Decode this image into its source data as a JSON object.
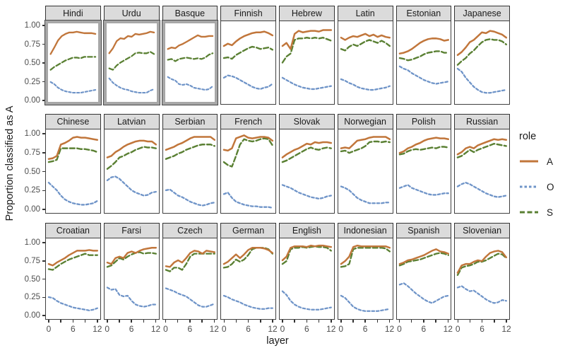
{
  "figure": {
    "ylabel": "Proportion classified as A",
    "xlabel": "layer",
    "y_tick_labels": [
      "1.00",
      "0.75",
      "0.50",
      "0.25",
      "0.00"
    ],
    "y_tick_values": [
      1.0,
      0.75,
      0.5,
      0.25,
      0.0
    ],
    "x_tick_labels": [
      "0",
      "6",
      "12"
    ],
    "x_labeled_values": [
      0,
      6,
      12
    ],
    "x_minor_tick_values": [
      0,
      3,
      6,
      9,
      12
    ]
  },
  "legend": {
    "title": "role",
    "entries": [
      {
        "label": "A",
        "color": "#c1763b",
        "dash": ""
      },
      {
        "label": "O",
        "color": "#6f94c8",
        "dash": "3.5 3"
      },
      {
        "label": "S",
        "color": "#5a8033",
        "dash": "7 3.5"
      }
    ]
  },
  "colors": {
    "series_A": "#c1763b",
    "series_O": "#6f94c8",
    "series_S": "#5a8033",
    "strip_bg": "#dbdbdb",
    "panel_border": "#404040",
    "highlight_frame": "#a7a7a7",
    "tick_text": "#4d4d4d"
  },
  "chart_data": {
    "type": "line",
    "xlabel": "layer",
    "ylabel": "Proportion classified as A",
    "x": [
      0,
      1,
      2,
      3,
      4,
      5,
      6,
      7,
      8,
      9,
      10,
      11,
      12
    ],
    "xlim": [
      0,
      12
    ],
    "ylim": [
      0,
      1
    ],
    "legend_position": "right",
    "series_names": [
      "A",
      "O",
      "S"
    ],
    "highlighted_facets": [
      "Hindi",
      "Urdu",
      "Basque"
    ],
    "facets": [
      {
        "title": "Hindi",
        "highlighted": true,
        "A": [
          0.62,
          0.71,
          0.81,
          0.87,
          0.9,
          0.92,
          0.92,
          0.93,
          0.92,
          0.91,
          0.91,
          0.91,
          0.9
        ],
        "O": [
          0.23,
          0.2,
          0.15,
          0.12,
          0.1,
          0.09,
          0.08,
          0.08,
          0.08,
          0.09,
          0.1,
          0.11,
          0.12
        ],
        "S": [
          0.4,
          0.44,
          0.47,
          0.5,
          0.53,
          0.55,
          0.57,
          0.57,
          0.56,
          0.58,
          0.58,
          0.58,
          0.58
        ]
      },
      {
        "title": "Urdu",
        "highlighted": true,
        "A": [
          0.63,
          0.7,
          0.8,
          0.84,
          0.83,
          0.87,
          0.86,
          0.9,
          0.89,
          0.9,
          0.91,
          0.93,
          0.92
        ],
        "O": [
          0.28,
          0.22,
          0.18,
          0.15,
          0.13,
          0.12,
          0.1,
          0.09,
          0.08,
          0.08,
          0.08,
          0.11,
          0.13
        ],
        "S": [
          0.42,
          0.4,
          0.46,
          0.5,
          0.53,
          0.56,
          0.59,
          0.63,
          0.64,
          0.63,
          0.63,
          0.65,
          0.62
        ]
      },
      {
        "title": "Basque",
        "highlighted": true,
        "A": [
          0.69,
          0.71,
          0.7,
          0.74,
          0.76,
          0.79,
          0.82,
          0.85,
          0.88,
          0.86,
          0.86,
          0.87,
          0.87
        ],
        "O": [
          0.3,
          0.27,
          0.25,
          0.2,
          0.19,
          0.2,
          0.18,
          0.15,
          0.14,
          0.13,
          0.12,
          0.13,
          0.17
        ],
        "S": [
          0.54,
          0.55,
          0.52,
          0.55,
          0.56,
          0.57,
          0.56,
          0.55,
          0.56,
          0.55,
          0.57,
          0.61,
          0.63
        ]
      },
      {
        "title": "Finnish",
        "highlighted": false,
        "A": [
          0.72,
          0.75,
          0.73,
          0.78,
          0.82,
          0.85,
          0.87,
          0.89,
          0.9,
          0.9,
          0.91,
          0.89,
          0.86
        ],
        "O": [
          0.3,
          0.33,
          0.32,
          0.3,
          0.27,
          0.24,
          0.21,
          0.18,
          0.16,
          0.15,
          0.17,
          0.18,
          0.22
        ],
        "S": [
          0.56,
          0.57,
          0.55,
          0.6,
          0.63,
          0.66,
          0.69,
          0.71,
          0.7,
          0.68,
          0.69,
          0.7,
          0.67
        ]
      },
      {
        "title": "Hebrew",
        "highlighted": false,
        "A": [
          0.72,
          0.76,
          0.68,
          0.88,
          0.92,
          0.9,
          0.91,
          0.92,
          0.92,
          0.91,
          0.93,
          0.93,
          0.93
        ],
        "O": [
          0.3,
          0.27,
          0.24,
          0.21,
          0.19,
          0.17,
          0.16,
          0.15,
          0.15,
          0.16,
          0.17,
          0.18,
          0.19
        ],
        "S": [
          0.5,
          0.58,
          0.62,
          0.8,
          0.82,
          0.82,
          0.83,
          0.82,
          0.83,
          0.82,
          0.83,
          0.81,
          0.79
        ]
      },
      {
        "title": "Latin",
        "highlighted": false,
        "A": [
          0.83,
          0.8,
          0.83,
          0.85,
          0.84,
          0.86,
          0.88,
          0.85,
          0.87,
          0.84,
          0.86,
          0.84,
          0.83
        ],
        "O": [
          0.28,
          0.26,
          0.23,
          0.21,
          0.18,
          0.16,
          0.15,
          0.14,
          0.14,
          0.15,
          0.16,
          0.17,
          0.19
        ],
        "S": [
          0.68,
          0.66,
          0.71,
          0.74,
          0.72,
          0.75,
          0.78,
          0.8,
          0.78,
          0.76,
          0.79,
          0.76,
          0.72
        ]
      },
      {
        "title": "Estonian",
        "highlighted": false,
        "A": [
          0.62,
          0.63,
          0.65,
          0.68,
          0.72,
          0.76,
          0.79,
          0.81,
          0.82,
          0.82,
          0.81,
          0.79,
          0.8
        ],
        "O": [
          0.45,
          0.42,
          0.4,
          0.36,
          0.33,
          0.3,
          0.27,
          0.25,
          0.23,
          0.22,
          0.23,
          0.24,
          0.25
        ],
        "S": [
          0.56,
          0.55,
          0.53,
          0.54,
          0.56,
          0.58,
          0.61,
          0.63,
          0.64,
          0.65,
          0.65,
          0.63,
          0.63
        ]
      },
      {
        "title": "Japanese",
        "highlighted": false,
        "A": [
          0.6,
          0.64,
          0.7,
          0.77,
          0.8,
          0.85,
          0.9,
          0.89,
          0.92,
          0.91,
          0.89,
          0.87,
          0.83
        ],
        "O": [
          0.42,
          0.38,
          0.3,
          0.24,
          0.18,
          0.14,
          0.11,
          0.1,
          0.1,
          0.11,
          0.12,
          0.13,
          0.14
        ],
        "S": [
          0.47,
          0.52,
          0.56,
          0.62,
          0.66,
          0.72,
          0.77,
          0.8,
          0.81,
          0.8,
          0.8,
          0.78,
          0.74
        ]
      },
      {
        "title": "Chinese",
        "highlighted": false,
        "A": [
          0.66,
          0.67,
          0.7,
          0.85,
          0.87,
          0.9,
          0.94,
          0.95,
          0.94,
          0.94,
          0.93,
          0.92,
          0.91
        ],
        "O": [
          0.35,
          0.3,
          0.25,
          0.18,
          0.13,
          0.1,
          0.08,
          0.07,
          0.06,
          0.06,
          0.07,
          0.08,
          0.11
        ],
        "S": [
          0.62,
          0.63,
          0.65,
          0.8,
          0.8,
          0.8,
          0.8,
          0.8,
          0.79,
          0.79,
          0.78,
          0.77,
          0.75
        ]
      },
      {
        "title": "Latvian",
        "highlighted": false,
        "A": [
          0.68,
          0.7,
          0.75,
          0.78,
          0.82,
          0.85,
          0.87,
          0.89,
          0.9,
          0.9,
          0.89,
          0.89,
          0.85
        ],
        "O": [
          0.38,
          0.42,
          0.43,
          0.4,
          0.35,
          0.3,
          0.25,
          0.22,
          0.2,
          0.18,
          0.19,
          0.22,
          0.23
        ],
        "S": [
          0.53,
          0.57,
          0.62,
          0.68,
          0.7,
          0.73,
          0.75,
          0.78,
          0.8,
          0.82,
          0.81,
          0.81,
          0.8
        ]
      },
      {
        "title": "Serbian",
        "highlighted": false,
        "A": [
          0.78,
          0.8,
          0.82,
          0.85,
          0.87,
          0.9,
          0.93,
          0.95,
          0.95,
          0.95,
          0.95,
          0.95,
          0.91
        ],
        "O": [
          0.25,
          0.26,
          0.22,
          0.18,
          0.16,
          0.13,
          0.1,
          0.08,
          0.06,
          0.05,
          0.06,
          0.08,
          0.09
        ],
        "S": [
          0.66,
          0.68,
          0.7,
          0.73,
          0.75,
          0.78,
          0.8,
          0.82,
          0.84,
          0.85,
          0.85,
          0.85,
          0.83
        ]
      },
      {
        "title": "French",
        "highlighted": false,
        "A": [
          0.78,
          0.77,
          0.8,
          0.93,
          0.95,
          0.97,
          0.94,
          0.93,
          0.94,
          0.95,
          0.95,
          0.94,
          0.9
        ],
        "O": [
          0.2,
          0.22,
          0.15,
          0.1,
          0.08,
          0.06,
          0.05,
          0.04,
          0.04,
          0.03,
          0.03,
          0.03,
          0.02
        ],
        "S": [
          0.62,
          0.58,
          0.56,
          0.7,
          0.85,
          0.92,
          0.9,
          0.89,
          0.9,
          0.92,
          0.93,
          0.92,
          0.84
        ]
      },
      {
        "title": "Slovak",
        "highlighted": false,
        "A": [
          0.68,
          0.72,
          0.75,
          0.78,
          0.8,
          0.83,
          0.86,
          0.85,
          0.88,
          0.87,
          0.88,
          0.88,
          0.87
        ],
        "O": [
          0.32,
          0.3,
          0.28,
          0.25,
          0.22,
          0.2,
          0.18,
          0.16,
          0.15,
          0.14,
          0.15,
          0.17,
          0.18
        ],
        "S": [
          0.62,
          0.64,
          0.67,
          0.7,
          0.73,
          0.76,
          0.79,
          0.81,
          0.79,
          0.78,
          0.8,
          0.81,
          0.8
        ]
      },
      {
        "title": "Norwegian",
        "highlighted": false,
        "A": [
          0.8,
          0.81,
          0.8,
          0.85,
          0.9,
          0.91,
          0.92,
          0.94,
          0.95,
          0.95,
          0.95,
          0.95,
          0.92
        ],
        "O": [
          0.3,
          0.28,
          0.25,
          0.2,
          0.15,
          0.12,
          0.1,
          0.08,
          0.08,
          0.08,
          0.08,
          0.09,
          0.09
        ],
        "S": [
          0.76,
          0.77,
          0.74,
          0.76,
          0.78,
          0.8,
          0.83,
          0.88,
          0.89,
          0.89,
          0.88,
          0.89,
          0.88
        ]
      },
      {
        "title": "Polish",
        "highlighted": false,
        "A": [
          0.74,
          0.76,
          0.8,
          0.82,
          0.85,
          0.87,
          0.9,
          0.92,
          0.93,
          0.94,
          0.93,
          0.93,
          0.92
        ],
        "O": [
          0.28,
          0.3,
          0.32,
          0.28,
          0.26,
          0.24,
          0.22,
          0.2,
          0.19,
          0.19,
          0.2,
          0.21,
          0.21
        ],
        "S": [
          0.72,
          0.73,
          0.76,
          0.78,
          0.79,
          0.78,
          0.79,
          0.8,
          0.81,
          0.8,
          0.82,
          0.82,
          0.81
        ]
      },
      {
        "title": "Russian",
        "highlighted": false,
        "A": [
          0.72,
          0.75,
          0.8,
          0.82,
          0.8,
          0.84,
          0.86,
          0.88,
          0.9,
          0.92,
          0.91,
          0.92,
          0.91
        ],
        "O": [
          0.3,
          0.33,
          0.35,
          0.33,
          0.3,
          0.27,
          0.24,
          0.21,
          0.19,
          0.17,
          0.16,
          0.17,
          0.18
        ],
        "S": [
          0.68,
          0.7,
          0.74,
          0.78,
          0.75,
          0.78,
          0.8,
          0.82,
          0.84,
          0.86,
          0.85,
          0.84,
          0.83
        ]
      },
      {
        "title": "Croatian",
        "highlighted": false,
        "A": [
          0.7,
          0.68,
          0.72,
          0.75,
          0.78,
          0.82,
          0.85,
          0.88,
          0.88,
          0.88,
          0.89,
          0.88,
          0.88
        ],
        "O": [
          0.25,
          0.24,
          0.2,
          0.17,
          0.15,
          0.13,
          0.11,
          0.1,
          0.09,
          0.08,
          0.07,
          0.08,
          0.1
        ],
        "S": [
          0.63,
          0.62,
          0.66,
          0.7,
          0.73,
          0.76,
          0.78,
          0.8,
          0.82,
          0.84,
          0.82,
          0.82,
          0.82
        ]
      },
      {
        "title": "Farsi",
        "highlighted": false,
        "A": [
          0.72,
          0.7,
          0.78,
          0.8,
          0.78,
          0.85,
          0.87,
          0.85,
          0.88,
          0.9,
          0.91,
          0.92,
          0.92
        ],
        "O": [
          0.38,
          0.35,
          0.36,
          0.28,
          0.26,
          0.27,
          0.2,
          0.15,
          0.13,
          0.12,
          0.13,
          0.15,
          0.15
        ],
        "S": [
          0.66,
          0.68,
          0.73,
          0.78,
          0.76,
          0.8,
          0.83,
          0.85,
          0.86,
          0.84,
          0.85,
          0.85,
          0.84
        ]
      },
      {
        "title": "Czech",
        "highlighted": false,
        "A": [
          0.67,
          0.66,
          0.72,
          0.75,
          0.72,
          0.78,
          0.85,
          0.88,
          0.87,
          0.84,
          0.88,
          0.87,
          0.86
        ],
        "O": [
          0.37,
          0.35,
          0.33,
          0.3,
          0.28,
          0.26,
          0.22,
          0.18,
          0.14,
          0.12,
          0.12,
          0.14,
          0.16
        ],
        "S": [
          0.62,
          0.6,
          0.65,
          0.65,
          0.62,
          0.7,
          0.8,
          0.84,
          0.84,
          0.84,
          0.84,
          0.84,
          0.84
        ]
      },
      {
        "title": "German",
        "highlighted": false,
        "A": [
          0.7,
          0.73,
          0.78,
          0.83,
          0.78,
          0.83,
          0.89,
          0.92,
          0.92,
          0.92,
          0.91,
          0.89,
          0.85
        ],
        "O": [
          0.27,
          0.25,
          0.22,
          0.2,
          0.18,
          0.15,
          0.13,
          0.11,
          0.1,
          0.09,
          0.09,
          0.1,
          0.1
        ],
        "S": [
          0.65,
          0.66,
          0.7,
          0.76,
          0.73,
          0.76,
          0.82,
          0.9,
          0.92,
          0.92,
          0.92,
          0.9,
          0.84
        ]
      },
      {
        "title": "English",
        "highlighted": false,
        "A": [
          0.75,
          0.8,
          0.92,
          0.94,
          0.94,
          0.94,
          0.93,
          0.95,
          0.94,
          0.95,
          0.95,
          0.94,
          0.93
        ],
        "O": [
          0.33,
          0.28,
          0.2,
          0.15,
          0.12,
          0.1,
          0.09,
          0.08,
          0.08,
          0.08,
          0.09,
          0.1,
          0.11
        ],
        "S": [
          0.7,
          0.74,
          0.9,
          0.92,
          0.92,
          0.93,
          0.92,
          0.93,
          0.94,
          0.93,
          0.93,
          0.92,
          0.88
        ]
      },
      {
        "title": "Indonesian",
        "highlighted": false,
        "A": [
          0.7,
          0.74,
          0.8,
          0.93,
          0.95,
          0.94,
          0.94,
          0.94,
          0.94,
          0.94,
          0.94,
          0.94,
          0.92
        ],
        "O": [
          0.27,
          0.24,
          0.18,
          0.12,
          0.09,
          0.07,
          0.06,
          0.06,
          0.06,
          0.06,
          0.07,
          0.08,
          0.09
        ],
        "S": [
          0.66,
          0.67,
          0.7,
          0.9,
          0.92,
          0.92,
          0.92,
          0.92,
          0.92,
          0.92,
          0.92,
          0.91,
          0.87
        ]
      },
      {
        "title": "Spanish",
        "highlighted": false,
        "A": [
          0.7,
          0.72,
          0.75,
          0.76,
          0.78,
          0.8,
          0.82,
          0.85,
          0.88,
          0.9,
          0.87,
          0.86,
          0.84
        ],
        "O": [
          0.42,
          0.44,
          0.4,
          0.35,
          0.3,
          0.26,
          0.22,
          0.19,
          0.17,
          0.2,
          0.23,
          0.26,
          0.27
        ],
        "S": [
          0.68,
          0.7,
          0.73,
          0.74,
          0.75,
          0.76,
          0.78,
          0.8,
          0.82,
          0.84,
          0.85,
          0.84,
          0.82
        ]
      },
      {
        "title": "Slovenian",
        "highlighted": false,
        "A": [
          0.58,
          0.68,
          0.7,
          0.7,
          0.73,
          0.75,
          0.74,
          0.8,
          0.85,
          0.87,
          0.88,
          0.86,
          0.79
        ],
        "O": [
          0.38,
          0.4,
          0.36,
          0.33,
          0.34,
          0.3,
          0.26,
          0.22,
          0.19,
          0.17,
          0.18,
          0.21,
          0.2
        ],
        "S": [
          0.55,
          0.65,
          0.67,
          0.68,
          0.7,
          0.73,
          0.73,
          0.75,
          0.78,
          0.81,
          0.84,
          0.83,
          0.78
        ]
      }
    ]
  }
}
